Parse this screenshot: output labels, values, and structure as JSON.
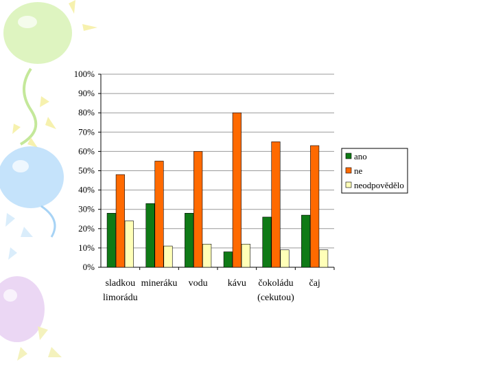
{
  "chart_data": {
    "type": "bar",
    "categories": [
      [
        "sladkou",
        "limorádu"
      ],
      [
        "mineráku"
      ],
      [
        "vodu"
      ],
      [
        "kávu"
      ],
      [
        "čokoládu",
        "(cekutou)"
      ],
      [
        "čaj"
      ]
    ],
    "series": [
      {
        "name": "ano",
        "values": [
          28,
          33,
          28,
          8,
          26,
          27
        ]
      },
      {
        "name": "ne",
        "values": [
          48,
          55,
          60,
          80,
          65,
          63
        ]
      },
      {
        "name": "neodpovědělo",
        "values": [
          24,
          11,
          12,
          12,
          9,
          9
        ]
      }
    ],
    "ylim": [
      0,
      100
    ],
    "yticks": [
      "0%",
      "10%",
      "20%",
      "30%",
      "40%",
      "50%",
      "60%",
      "70%",
      "80%",
      "90%",
      "100%"
    ],
    "grid": true,
    "legend": "right",
    "colors": [
      "#0f7a16",
      "#ff6a00",
      "#ffffb8"
    ]
  }
}
